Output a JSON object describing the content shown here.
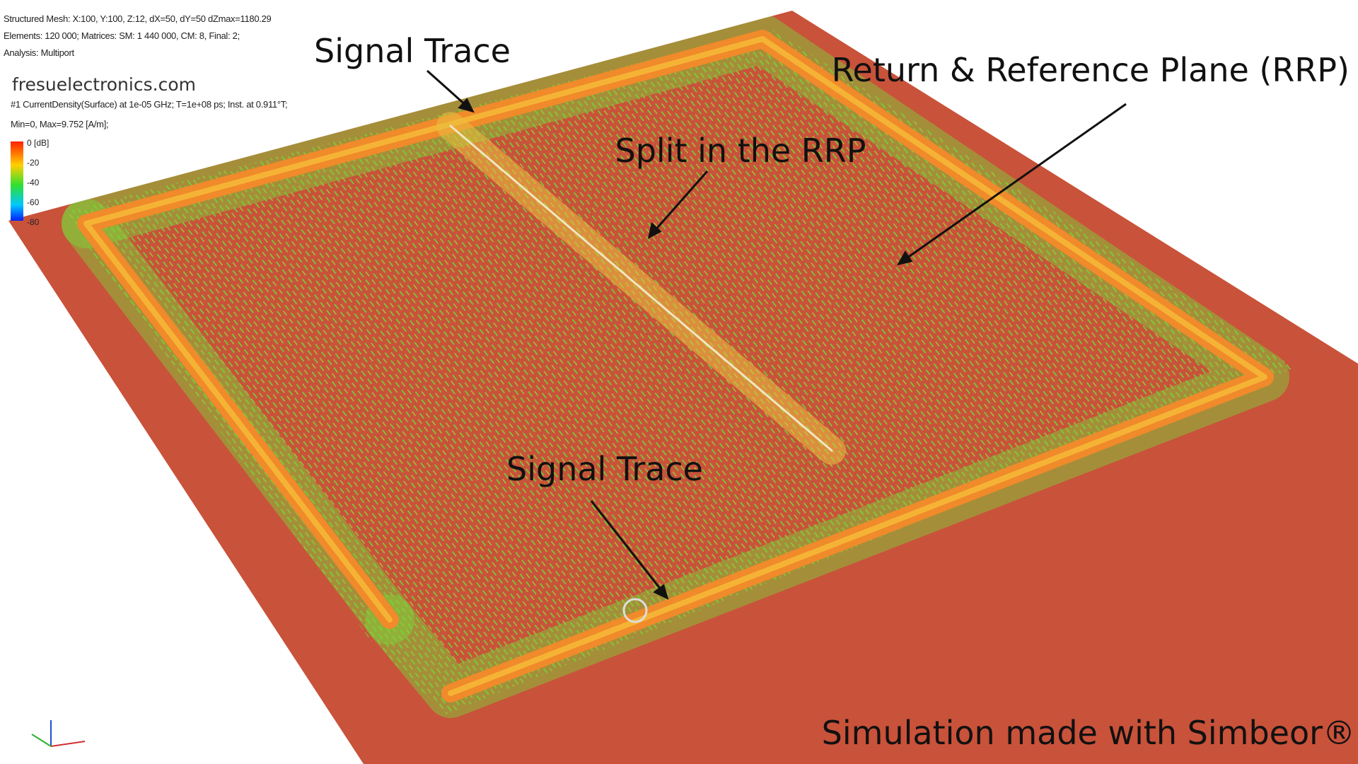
{
  "header": {
    "info_lines": [
      "Structured Mesh: X:100, Y:100, Z:12, dX=50, dY=50 dZmax=1180.29",
      "Elements: 120 000; Matrices: SM: 1 440 000, CM: 8, Final: 2;",
      "Analysis: Multiport"
    ],
    "watermark": "fresuelectronics.com",
    "result_lines": [
      "#1 CurrentDensity(Surface) at 1e-05 GHz; T=1e+08 ps; Inst. at      0.911°T;",
      "Min=0, Max=9.752 [A/m];"
    ]
  },
  "legend": {
    "labels": [
      "0 [dB]",
      "-20",
      "-40",
      "-60",
      "-80"
    ]
  },
  "annotations": {
    "signal_trace_top": "Signal Trace",
    "rrp": "Return & Reference Plane (RRP)",
    "split": "Split in the RRP",
    "signal_trace_bottom": "Signal Trace",
    "credit": "Simulation made with Simbeor®"
  }
}
